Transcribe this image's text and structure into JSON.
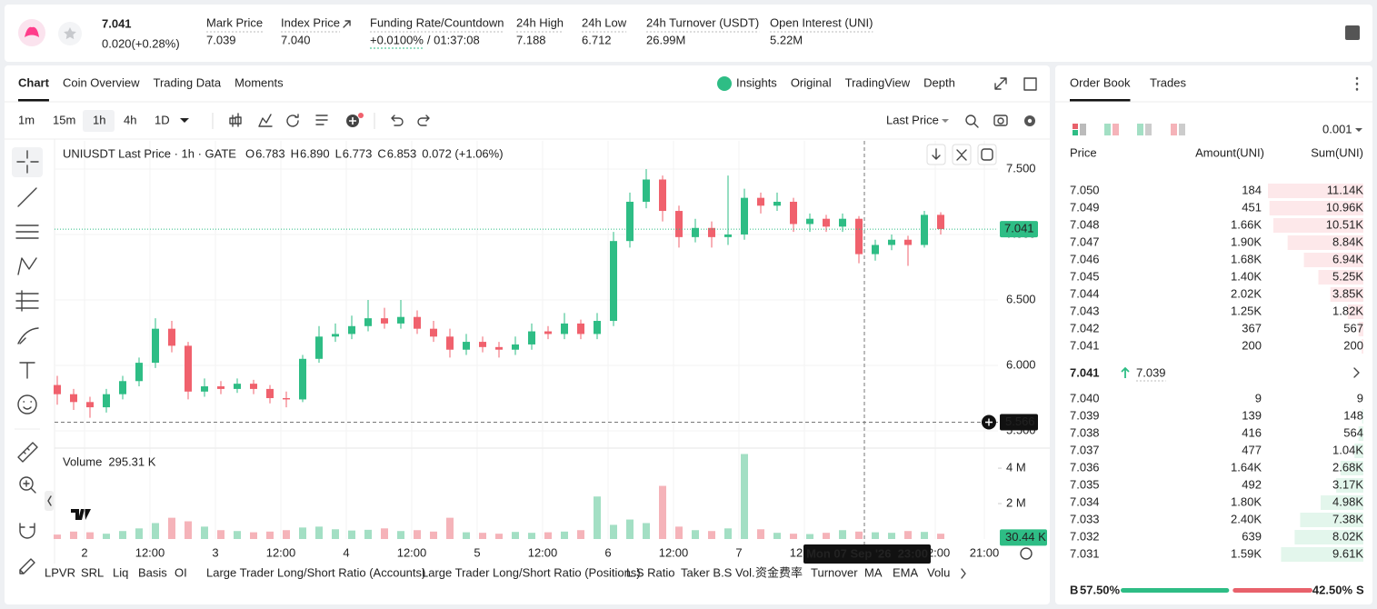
{
  "header": {
    "price": "7.041",
    "change": "0.020(+0.28%)",
    "stats": [
      {
        "label": "Mark Price",
        "value": "7.039"
      },
      {
        "label": "Index Price",
        "value": "7.040"
      },
      {
        "label": "Funding Rate/Countdown",
        "value": "+0.0100%",
        "extra": "/ 01:37:08"
      },
      {
        "label": "24h High",
        "value": "7.188"
      },
      {
        "label": "24h Low",
        "value": "6.712"
      },
      {
        "label": "24h Turnover (USDT)",
        "value": "26.99M"
      },
      {
        "label": "Open Interest (UNI)",
        "value": "5.22M"
      }
    ]
  },
  "chart_tabs": [
    "Chart",
    "Coin Overview",
    "Trading Data",
    "Moments"
  ],
  "view_tabs": [
    "Insights",
    "Original",
    "TradingView",
    "Depth"
  ],
  "intervals": [
    "1m",
    "15m",
    "1h",
    "4h",
    "1D"
  ],
  "price_type": "Last Price",
  "chart_data": {
    "type": "candlestick",
    "title": "UNIUSDT Last Price · 1h · GATE",
    "ohlc_legend": [
      {
        "key": "O",
        "value": "6.783"
      },
      {
        "key": "H",
        "value": "6.890"
      },
      {
        "key": "L",
        "value": "6.773"
      },
      {
        "key": "C",
        "value": "6.853"
      }
    ],
    "legend_change": "0.072 (+1.06%)",
    "volume_title": "Volume",
    "volume_value": "295.31 K",
    "x": [
      -5,
      -2,
      1,
      4,
      7,
      10,
      13,
      16,
      19,
      22,
      25,
      28,
      31,
      34,
      37,
      40,
      43,
      46,
      49,
      52,
      55,
      58,
      61,
      64,
      67,
      70,
      73,
      76,
      79,
      82,
      85,
      88,
      91,
      94,
      97,
      100,
      103,
      106,
      109,
      112,
      115,
      118,
      121,
      124,
      127,
      130,
      133,
      136,
      139,
      142,
      145,
      148,
      151,
      154,
      157
    ],
    "open": [
      5.85,
      5.78,
      5.72,
      5.68,
      5.78,
      5.88,
      6.02,
      6.28,
      6.15,
      5.8,
      5.84,
      5.82,
      5.86,
      5.82,
      5.75,
      5.74,
      6.05,
      6.22,
      6.24,
      6.3,
      6.36,
      6.32,
      6.37,
      6.28,
      6.22,
      6.12,
      6.18,
      6.14,
      6.12,
      6.16,
      6.26,
      6.24,
      6.32,
      6.24,
      6.34,
      6.95,
      7.25,
      7.42,
      7.18,
      6.98,
      7.05,
      6.98,
      7.0,
      7.28,
      7.22,
      7.25,
      7.08,
      7.12,
      7.06,
      7.12,
      6.85,
      6.92,
      6.96,
      6.92,
      7.15
    ],
    "high": [
      5.92,
      5.82,
      5.76,
      5.82,
      5.92,
      6.06,
      6.36,
      6.34,
      6.18,
      5.9,
      5.88,
      5.9,
      5.89,
      5.85,
      5.8,
      6.08,
      6.3,
      6.32,
      6.38,
      6.5,
      6.44,
      6.5,
      6.42,
      6.34,
      6.28,
      6.24,
      6.22,
      6.18,
      6.22,
      6.32,
      6.3,
      6.4,
      6.35,
      6.4,
      7.02,
      7.32,
      7.5,
      7.45,
      7.22,
      7.12,
      7.1,
      7.45,
      7.35,
      7.32,
      7.32,
      7.28,
      7.16,
      7.15,
      7.16,
      7.14,
      6.96,
      7.0,
      6.99,
      7.18,
      7.17
    ],
    "low": [
      5.7,
      5.66,
      5.6,
      5.64,
      5.74,
      5.84,
      5.98,
      6.1,
      5.74,
      5.76,
      5.78,
      5.79,
      5.78,
      5.71,
      5.68,
      5.72,
      6.02,
      6.18,
      6.2,
      6.26,
      6.28,
      6.28,
      6.24,
      6.18,
      6.06,
      6.08,
      6.1,
      6.06,
      6.08,
      6.12,
      6.2,
      6.2,
      6.2,
      6.2,
      6.3,
      6.9,
      7.2,
      7.1,
      6.9,
      6.94,
      6.9,
      6.92,
      6.96,
      7.16,
      7.18,
      7.02,
      7.02,
      7.02,
      7.02,
      6.78,
      6.8,
      6.88,
      6.76,
      6.9,
      7.0
    ],
    "close": [
      5.78,
      5.72,
      5.68,
      5.78,
      5.88,
      6.02,
      6.28,
      6.15,
      5.8,
      5.84,
      5.82,
      5.86,
      5.82,
      5.75,
      5.74,
      6.05,
      6.22,
      6.24,
      6.3,
      6.36,
      6.32,
      6.37,
      6.28,
      6.22,
      6.12,
      6.18,
      6.14,
      6.12,
      6.16,
      6.26,
      6.24,
      6.32,
      6.24,
      6.34,
      6.95,
      7.25,
      7.42,
      7.18,
      6.98,
      7.05,
      6.98,
      7.0,
      7.28,
      7.22,
      7.25,
      7.08,
      7.12,
      7.06,
      7.12,
      6.85,
      6.92,
      6.96,
      6.92,
      7.15,
      7.041
    ],
    "volume": [
      250000,
      420000,
      380000,
      300000,
      450000,
      600000,
      900000,
      1200000,
      1000000,
      700000,
      500000,
      450000,
      380000,
      420000,
      500000,
      650000,
      700000,
      550000,
      480000,
      520000,
      600000,
      450000,
      500000,
      420000,
      1200000,
      380000,
      350000,
      300000,
      400000,
      350000,
      380000,
      420000,
      500000,
      2400000,
      800000,
      1100000,
      900000,
      3000000,
      700000,
      500000,
      450000,
      600000,
      4800000,
      550000,
      350000,
      300000,
      280000,
      350000,
      500000,
      420000,
      380000,
      350000,
      450000,
      400000,
      300000
    ],
    "xlim": [
      -5.5,
      167.5
    ],
    "xticks": [
      {
        "value": 0,
        "label": "2"
      },
      {
        "value": 12,
        "label": "12:00"
      },
      {
        "value": 24,
        "label": "3"
      },
      {
        "value": 36,
        "label": "12:00"
      },
      {
        "value": 48,
        "label": "4"
      },
      {
        "value": 60,
        "label": "12:00"
      },
      {
        "value": 72,
        "label": "5"
      },
      {
        "value": 84,
        "label": "12:00"
      },
      {
        "value": 96,
        "label": "6"
      },
      {
        "value": 108,
        "label": "12:00"
      },
      {
        "value": 120,
        "label": "7"
      },
      {
        "value": 132,
        "label": "12:00"
      },
      {
        "value": 156,
        "label": "12:00"
      },
      {
        "value": 165,
        "label": "21:00"
      }
    ],
    "ylim": [
      5.375,
      7.715
    ],
    "yticks": [
      {
        "value": 5.5,
        "label": "5.500"
      },
      {
        "value": 6,
        "label": "6.000"
      },
      {
        "value": 6.5,
        "label": "6.500"
      },
      {
        "value": 7,
        "label": "7.000"
      },
      {
        "value": 7.5,
        "label": "7.500"
      }
    ],
    "volume_ylim": [
      0,
      5030000
    ],
    "volume_yticks": [
      {
        "value": 2000000,
        "label": "2 M"
      },
      {
        "value": 4000000,
        "label": "4 M"
      }
    ],
    "up_color": "#2ebd85",
    "down_color": "#f0616d",
    "up_volume_color": "#a3dfc4",
    "down_volume_color": "#f5b3b9",
    "grid": true,
    "last_price": 7.041,
    "crosshair_price": 5.566,
    "crosshair_x": {
      "value": 143,
      "label": "Mon 07 Sep '26  23:00"
    },
    "last_volume": {
      "value": 30440,
      "label": "30.44 K"
    }
  },
  "indicators": [
    "LPVR",
    "SRL",
    "Liq",
    "Basis",
    "OI",
    "Large Trader Long/Short Ratio (Accounts)",
    "Large Trader Long/Short Ratio (Positions)",
    "L.S Ratio",
    "Taker B.S Vol.",
    "资金费率",
    "Turnover",
    "MA",
    "EMA",
    "Volu"
  ],
  "order_book": {
    "tabs": [
      "Order Book",
      "Trades"
    ],
    "precision": "0.001",
    "columns": [
      "Price",
      "Amount(UNI)",
      "Sum(UNI)"
    ],
    "asks": [
      [
        "7.050",
        "184",
        "11.14K"
      ],
      [
        "7.049",
        "451",
        "10.96K"
      ],
      [
        "7.048",
        "1.66K",
        "10.51K"
      ],
      [
        "7.047",
        "1.90K",
        "8.84K"
      ],
      [
        "7.046",
        "1.68K",
        "6.94K"
      ],
      [
        "7.045",
        "1.40K",
        "5.25K"
      ],
      [
        "7.044",
        "2.02K",
        "3.85K"
      ],
      [
        "7.043",
        "1.25K",
        "1.82K"
      ],
      [
        "7.042",
        "367",
        "567"
      ],
      [
        "7.041",
        "200",
        "200"
      ]
    ],
    "last": "7.041",
    "mark": "7.039",
    "bids": [
      [
        "7.040",
        "9",
        "9"
      ],
      [
        "7.039",
        "139",
        "148"
      ],
      [
        "7.038",
        "416",
        "564"
      ],
      [
        "7.037",
        "477",
        "1.04K"
      ],
      [
        "7.036",
        "1.64K",
        "2.68K"
      ],
      [
        "7.035",
        "492",
        "3.17K"
      ],
      [
        "7.034",
        "1.80K",
        "4.98K"
      ],
      [
        "7.033",
        "2.40K",
        "7.38K"
      ],
      [
        "7.032",
        "639",
        "8.02K"
      ],
      [
        "7.031",
        "1.59K",
        "9.61K"
      ]
    ],
    "buy_key": "B",
    "buy": {
      "value": 57.5,
      "label": "57.50%"
    },
    "sell": {
      "value": 42.5,
      "label": "42.50%"
    },
    "sell_key": "S"
  }
}
